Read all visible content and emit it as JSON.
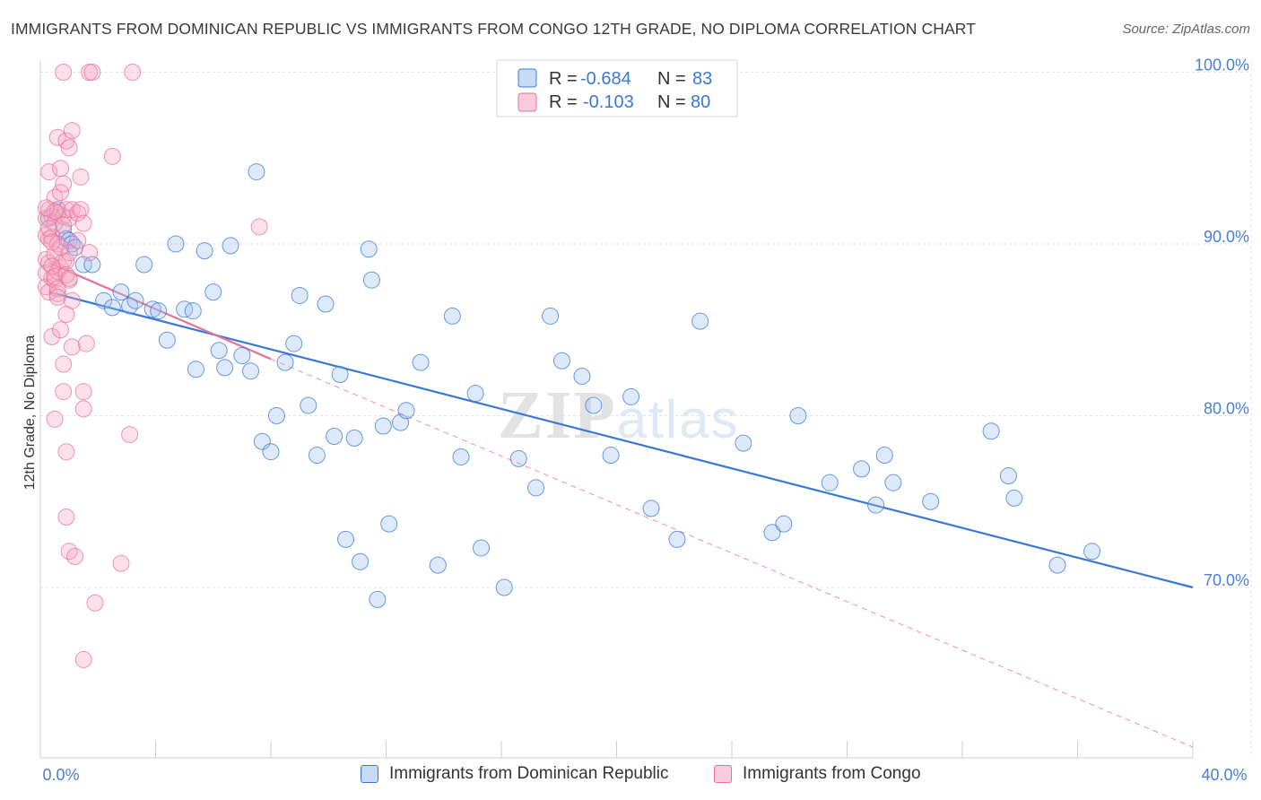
{
  "title": "IMMIGRANTS FROM DOMINICAN REPUBLIC VS IMMIGRANTS FROM CONGO 12TH GRADE, NO DIPLOMA CORRELATION CHART",
  "source": "Source: ZipAtlas.com",
  "watermark": "ZIPatlas",
  "colors": {
    "blue": "#3a78d8",
    "blue_fill": "rgba(160,196,240,0.35)",
    "pink": "#e8709a",
    "pink_fill": "rgba(245,170,195,0.35)",
    "grid": "#e3e3e3"
  },
  "legend_box": {
    "rows": [
      {
        "r_label": "R =",
        "r_value": "-0.684",
        "n_label": "N =",
        "n_value": "83",
        "series": "blue"
      },
      {
        "r_label": "R =",
        "r_value": "-0.103",
        "n_label": "N =",
        "n_value": "80",
        "series": "pink"
      }
    ]
  },
  "bottom_legend": {
    "items": [
      {
        "label": "Immigrants from Dominican Republic",
        "series": "blue"
      },
      {
        "label": "Immigrants from Congo",
        "series": "pink"
      }
    ]
  },
  "chart_data": {
    "type": "scatter",
    "title": "IMMIGRANTS FROM DOMINICAN REPUBLIC VS IMMIGRANTS FROM CONGO 12TH GRADE, NO DIPLOMA CORRELATION CHART",
    "xlabel": "",
    "ylabel": "12th Grade, No Diploma",
    "xlim": [
      0,
      40
    ],
    "ylim": [
      60,
      101
    ],
    "x_tick_labels": [
      "0.0%",
      "40.0%"
    ],
    "y_ticks": [
      70,
      80,
      90,
      100
    ],
    "y_tick_labels": [
      "70.0%",
      "80.0%",
      "90.0%",
      "100.0%"
    ],
    "grid": true,
    "legend_placement": "top-center",
    "series": [
      {
        "name": "Immigrants from Dominican Republic",
        "color": "blue",
        "R": -0.684,
        "N": 83,
        "trend": {
          "x": [
            0.3,
            40
          ],
          "y": [
            87.2,
            70.0
          ]
        },
        "points": [
          [
            0.3,
            91.5
          ],
          [
            0.6,
            92.0
          ],
          [
            0.8,
            90.8
          ],
          [
            0.9,
            90.3
          ],
          [
            1.0,
            90.2
          ],
          [
            1.1,
            90.0
          ],
          [
            1.2,
            89.8
          ],
          [
            1.5,
            88.8
          ],
          [
            1.8,
            88.8
          ],
          [
            2.2,
            86.7
          ],
          [
            2.5,
            86.3
          ],
          [
            2.8,
            87.2
          ],
          [
            3.1,
            86.4
          ],
          [
            3.3,
            86.7
          ],
          [
            3.6,
            88.8
          ],
          [
            3.9,
            86.2
          ],
          [
            4.1,
            86.1
          ],
          [
            4.4,
            84.4
          ],
          [
            4.7,
            90.0
          ],
          [
            5.0,
            86.2
          ],
          [
            5.3,
            86.1
          ],
          [
            5.4,
            82.7
          ],
          [
            5.7,
            89.6
          ],
          [
            6.0,
            87.2
          ],
          [
            6.2,
            83.8
          ],
          [
            6.4,
            82.8
          ],
          [
            6.6,
            89.9
          ],
          [
            7.0,
            83.5
          ],
          [
            7.3,
            82.6
          ],
          [
            7.5,
            94.2
          ],
          [
            7.7,
            78.5
          ],
          [
            8.0,
            77.9
          ],
          [
            8.2,
            80.0
          ],
          [
            8.5,
            83.1
          ],
          [
            8.8,
            84.2
          ],
          [
            9.0,
            87.0
          ],
          [
            9.3,
            80.6
          ],
          [
            9.6,
            77.7
          ],
          [
            9.9,
            86.5
          ],
          [
            10.2,
            78.8
          ],
          [
            10.4,
            82.4
          ],
          [
            10.6,
            72.8
          ],
          [
            10.9,
            78.7
          ],
          [
            11.1,
            71.5
          ],
          [
            11.4,
            89.7
          ],
          [
            11.5,
            87.9
          ],
          [
            11.7,
            69.3
          ],
          [
            11.9,
            79.4
          ],
          [
            12.1,
            73.7
          ],
          [
            12.5,
            79.6
          ],
          [
            12.7,
            80.3
          ],
          [
            13.2,
            83.1
          ],
          [
            13.8,
            71.3
          ],
          [
            14.3,
            85.8
          ],
          [
            14.6,
            77.6
          ],
          [
            15.1,
            81.3
          ],
          [
            15.3,
            72.3
          ],
          [
            16.1,
            70.0
          ],
          [
            16.6,
            77.5
          ],
          [
            17.2,
            75.8
          ],
          [
            17.7,
            85.8
          ],
          [
            18.1,
            83.2
          ],
          [
            18.8,
            82.3
          ],
          [
            19.2,
            80.6
          ],
          [
            19.8,
            77.7
          ],
          [
            20.5,
            81.1
          ],
          [
            21.2,
            74.6
          ],
          [
            22.1,
            72.8
          ],
          [
            22.9,
            85.5
          ],
          [
            24.4,
            78.4
          ],
          [
            25.4,
            73.2
          ],
          [
            25.8,
            73.7
          ],
          [
            26.3,
            80.0
          ],
          [
            27.4,
            76.1
          ],
          [
            28.5,
            76.9
          ],
          [
            29.0,
            74.8
          ],
          [
            29.3,
            77.7
          ],
          [
            29.6,
            76.1
          ],
          [
            30.9,
            75.0
          ],
          [
            33.0,
            79.1
          ],
          [
            33.6,
            76.5
          ],
          [
            33.8,
            75.2
          ],
          [
            35.3,
            71.3
          ],
          [
            36.5,
            72.1
          ]
        ]
      },
      {
        "name": "Immigrants from Congo",
        "color": "pink",
        "R": -0.103,
        "N": 80,
        "trend": {
          "x": [
            0.3,
            8.0
          ],
          "y": [
            88.9,
            83.3
          ]
        },
        "trend_dashed": {
          "x": [
            8.0,
            40
          ],
          "y": [
            83.3,
            60.7
          ]
        },
        "points": [
          [
            0.2,
            91.5
          ],
          [
            0.2,
            90.5
          ],
          [
            0.2,
            89.1
          ],
          [
            0.2,
            88.3
          ],
          [
            0.2,
            87.5
          ],
          [
            0.3,
            94.2
          ],
          [
            0.3,
            92.0
          ],
          [
            0.3,
            90.3
          ],
          [
            0.3,
            88.9
          ],
          [
            0.3,
            87.2
          ],
          [
            0.4,
            91.6
          ],
          [
            0.4,
            90.4
          ],
          [
            0.4,
            88.0
          ],
          [
            0.4,
            84.6
          ],
          [
            0.5,
            92.7
          ],
          [
            0.5,
            91.2
          ],
          [
            0.5,
            89.4
          ],
          [
            0.5,
            87.9
          ],
          [
            0.5,
            79.8
          ],
          [
            0.6,
            96.2
          ],
          [
            0.6,
            91.8
          ],
          [
            0.6,
            90.0
          ],
          [
            0.6,
            88.4
          ],
          [
            0.6,
            87.1
          ],
          [
            0.7,
            94.4
          ],
          [
            0.7,
            93.0
          ],
          [
            0.7,
            88.6
          ],
          [
            0.7,
            85.0
          ],
          [
            0.8,
            100.0
          ],
          [
            0.8,
            93.5
          ],
          [
            0.8,
            91.6
          ],
          [
            0.8,
            89.0
          ],
          [
            0.8,
            83.0
          ],
          [
            0.8,
            81.4
          ],
          [
            0.9,
            96.0
          ],
          [
            0.9,
            92.0
          ],
          [
            0.9,
            89.0
          ],
          [
            0.9,
            85.9
          ],
          [
            0.9,
            77.9
          ],
          [
            0.9,
            74.1
          ],
          [
            1.0,
            95.6
          ],
          [
            1.0,
            91.5
          ],
          [
            1.0,
            89.5
          ],
          [
            1.0,
            87.9
          ],
          [
            1.0,
            72.1
          ],
          [
            1.1,
            96.6
          ],
          [
            1.1,
            92.0
          ],
          [
            1.1,
            86.7
          ],
          [
            1.1,
            84.0
          ],
          [
            1.2,
            71.8
          ],
          [
            1.3,
            91.8
          ],
          [
            1.3,
            90.2
          ],
          [
            1.4,
            93.9
          ],
          [
            1.4,
            92.0
          ],
          [
            1.5,
            91.2
          ],
          [
            1.5,
            81.4
          ],
          [
            1.5,
            80.4
          ],
          [
            1.5,
            65.8
          ],
          [
            1.6,
            84.2
          ],
          [
            1.7,
            100.0
          ],
          [
            1.7,
            89.5
          ],
          [
            1.8,
            100.0
          ],
          [
            1.9,
            69.1
          ],
          [
            2.5,
            95.1
          ],
          [
            2.8,
            71.4
          ],
          [
            3.1,
            78.9
          ],
          [
            3.2,
            100.0
          ],
          [
            0.4,
            88.7
          ],
          [
            0.5,
            88.1
          ],
          [
            0.6,
            87.4
          ],
          [
            0.7,
            89.8
          ],
          [
            0.3,
            90.9
          ],
          [
            0.4,
            90.1
          ],
          [
            0.5,
            91.9
          ],
          [
            0.9,
            88.2
          ],
          [
            1.0,
            88.0
          ],
          [
            0.2,
            92.1
          ],
          [
            7.6,
            91.0
          ],
          [
            0.6,
            86.9
          ],
          [
            0.8,
            91.1
          ]
        ]
      }
    ]
  }
}
